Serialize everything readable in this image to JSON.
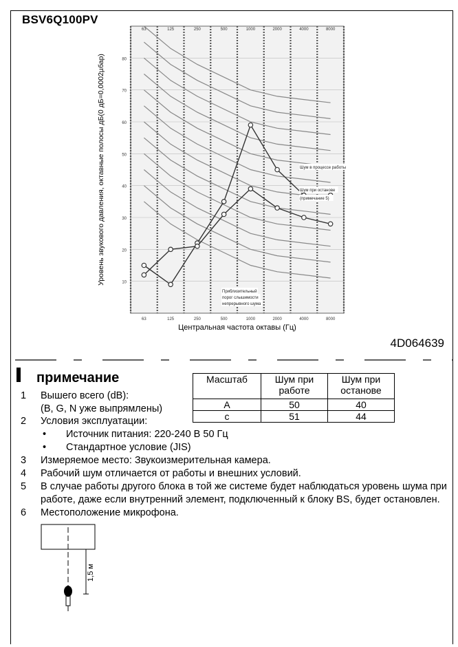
{
  "header": {
    "model": "BSV6Q100PV"
  },
  "document": {
    "code": "4D064639"
  },
  "chart_data": {
    "type": "line",
    "ylabel": "Уровень звукового давления, октавные полосы дБ(0 дБ=0,0002µбар)",
    "xlabel": "Центральная частота октавы (Гц)",
    "x": [
      "63",
      "125",
      "250",
      "500",
      "1000",
      "2000",
      "4000",
      "8000"
    ],
    "ylim": [
      0,
      90
    ],
    "yticks": [
      10,
      20,
      30,
      40,
      50,
      60,
      70,
      80
    ],
    "series": [
      {
        "name": "Шум в процессе работы",
        "values": [
          15,
          9,
          22,
          35,
          59,
          45,
          37,
          37
        ]
      },
      {
        "name": "Шум при останове (примечание 5)",
        "values": [
          12,
          20,
          21,
          31,
          39,
          33,
          30,
          28
        ]
      }
    ],
    "annotations": [
      "Шум в процессе работы",
      "Шум при останове",
      "(примечание 5)",
      "Приблизительный",
      "порог слышимости",
      "непрерывного шума"
    ],
    "nc_curves": true,
    "grid": true
  },
  "notes": {
    "heading": "примечание",
    "items": [
      {
        "num": "1",
        "line1": "Вышего всего (dB):",
        "line2": "(B, G, N  уже выпрямлены)"
      },
      {
        "num": "2",
        "line1": "Условия эксплуатации:",
        "bullets": [
          "Источник питания: 220-240 В  50 Гц",
          "Стандартное условие (JIS)"
        ]
      },
      {
        "num": "3",
        "line1": "Измеряемое место: Звукоизмерительная камера."
      },
      {
        "num": "4",
        "line1": "Рабочий шум отличается от работы и внешних условий."
      },
      {
        "num": "5",
        "line1": "В случае работы другого блока в той же системе будет наблюдаться уровень шума при",
        "line2": "работе, даже если внутренний элемент, подключенный к блоку BS, будет остановлен."
      },
      {
        "num": "6",
        "line1": "Местоположение микрофона."
      }
    ]
  },
  "table": {
    "headers": [
      "Масштаб",
      "Шум при работе",
      "Шум при останове"
    ],
    "rows": [
      [
        "A",
        "50",
        "40"
      ],
      [
        "c",
        "51",
        "44"
      ]
    ]
  },
  "microphone": {
    "distance": "1,5 м"
  }
}
